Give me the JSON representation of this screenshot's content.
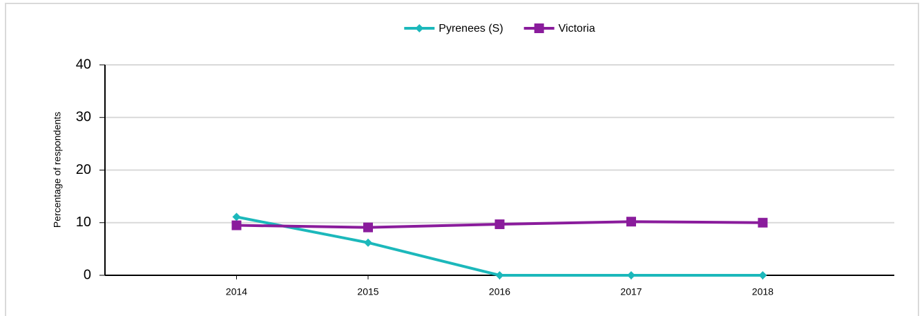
{
  "chart_data": {
    "type": "line",
    "y_label": "Percentage of respondents",
    "categories": [
      "2014",
      "2015",
      "2016",
      "2017",
      "2018"
    ],
    "series": [
      {
        "name": "Pyrenees (S)",
        "color": "#1cb8bb",
        "marker": "diamond",
        "values": [
          11.1,
          6.2,
          0,
          0,
          0
        ]
      },
      {
        "name": "Victoria",
        "color": "#8a1c9c",
        "marker": "square",
        "values": [
          9.5,
          9.1,
          9.7,
          10.2,
          10.0
        ]
      }
    ],
    "ylim": [
      0,
      40
    ],
    "yticks": [
      0,
      10,
      20,
      30,
      40
    ],
    "grid": true,
    "legend": "top"
  }
}
